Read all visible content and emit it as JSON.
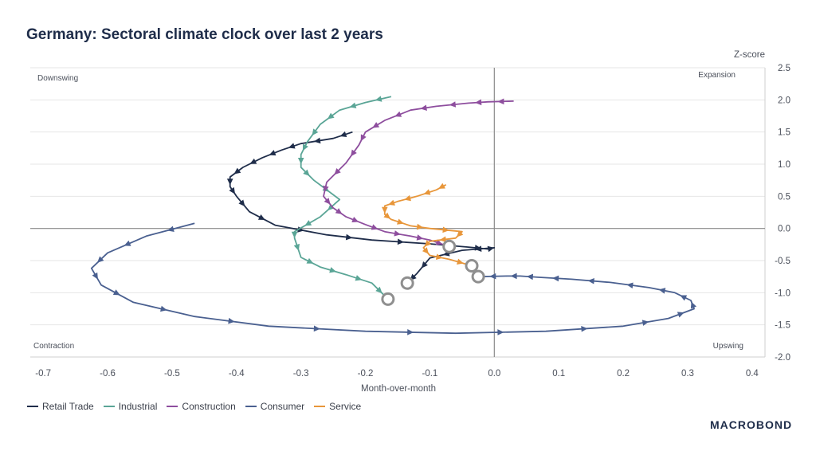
{
  "title": "Germany: Sectoral climate clock over last 2 years",
  "logo": "MACROBOND",
  "chart_data": {
    "type": "line",
    "xlabel": "Month-over-month",
    "ylabel": "Z-score",
    "xlim": [
      -0.72,
      0.42
    ],
    "ylim": [
      -2.0,
      2.5
    ],
    "x_ticks": [
      "-0.7",
      "-0.6",
      "-0.5",
      "-0.4",
      "-0.3",
      "-0.2",
      "-0.1",
      "0.0",
      "0.1",
      "0.2",
      "0.3",
      "0.4"
    ],
    "y_ticks": [
      "2.5",
      "2.0",
      "1.5",
      "1.0",
      "0.5",
      "0.0",
      "-0.5",
      "-1.0",
      "-1.5",
      "-2.0"
    ],
    "quadrants": {
      "top_left": "Downswing",
      "top_right": "Expansion",
      "bottom_left": "Contraction",
      "bottom_right": "Upswing"
    },
    "series": [
      {
        "name": "Retail Trade",
        "color": "#1f2d4a",
        "points": [
          [
            -0.22,
            1.5
          ],
          [
            -0.25,
            1.4
          ],
          [
            -0.3,
            1.32
          ],
          [
            -0.33,
            1.22
          ],
          [
            -0.36,
            1.1
          ],
          [
            -0.39,
            0.95
          ],
          [
            -0.41,
            0.8
          ],
          [
            -0.41,
            0.65
          ],
          [
            -0.4,
            0.5
          ],
          [
            -0.38,
            0.26
          ],
          [
            -0.34,
            0.05
          ],
          [
            -0.26,
            -0.1
          ],
          [
            -0.19,
            -0.18
          ],
          [
            -0.1,
            -0.24
          ],
          [
            -0.04,
            -0.29
          ],
          [
            -0.01,
            -0.32
          ],
          [
            0.0,
            -0.3
          ],
          [
            -0.05,
            -0.34
          ],
          [
            -0.1,
            -0.46
          ],
          [
            -0.12,
            -0.7
          ],
          [
            -0.135,
            -0.85
          ]
        ]
      },
      {
        "name": "Industrial",
        "color": "#5aa596",
        "points": [
          [
            -0.16,
            2.05
          ],
          [
            -0.2,
            1.96
          ],
          [
            -0.24,
            1.84
          ],
          [
            -0.27,
            1.62
          ],
          [
            -0.29,
            1.35
          ],
          [
            -0.3,
            1.15
          ],
          [
            -0.3,
            0.95
          ],
          [
            -0.28,
            0.75
          ],
          [
            -0.24,
            0.45
          ],
          [
            -0.27,
            0.18
          ],
          [
            -0.31,
            -0.05
          ],
          [
            -0.31,
            -0.15
          ],
          [
            -0.3,
            -0.45
          ],
          [
            -0.27,
            -0.6
          ],
          [
            -0.23,
            -0.72
          ],
          [
            -0.19,
            -0.85
          ],
          [
            -0.165,
            -1.1
          ]
        ]
      },
      {
        "name": "Construction",
        "color": "#8e4e9e",
        "points": [
          [
            0.03,
            1.98
          ],
          [
            -0.01,
            1.97
          ],
          [
            -0.04,
            1.95
          ],
          [
            -0.09,
            1.9
          ],
          [
            -0.13,
            1.84
          ],
          [
            -0.17,
            1.68
          ],
          [
            -0.2,
            1.5
          ],
          [
            -0.21,
            1.3
          ],
          [
            -0.23,
            1.02
          ],
          [
            -0.26,
            0.72
          ],
          [
            -0.265,
            0.5
          ],
          [
            -0.25,
            0.32
          ],
          [
            -0.23,
            0.18
          ],
          [
            -0.2,
            0.06
          ],
          [
            -0.17,
            -0.05
          ],
          [
            -0.13,
            -0.12
          ],
          [
            -0.1,
            -0.18
          ],
          [
            -0.07,
            -0.28
          ]
        ]
      },
      {
        "name": "Consumer",
        "color": "#4a6090",
        "points": [
          [
            -0.465,
            0.08
          ],
          [
            -0.54,
            -0.12
          ],
          [
            -0.6,
            -0.38
          ],
          [
            -0.625,
            -0.62
          ],
          [
            -0.61,
            -0.88
          ],
          [
            -0.56,
            -1.15
          ],
          [
            -0.465,
            -1.37
          ],
          [
            -0.35,
            -1.52
          ],
          [
            -0.2,
            -1.6
          ],
          [
            -0.06,
            -1.63
          ],
          [
            0.08,
            -1.6
          ],
          [
            0.2,
            -1.52
          ],
          [
            0.27,
            -1.4
          ],
          [
            0.31,
            -1.25
          ],
          [
            0.305,
            -1.12
          ],
          [
            0.28,
            -1.0
          ],
          [
            0.24,
            -0.92
          ],
          [
            0.18,
            -0.84
          ],
          [
            0.12,
            -0.79
          ],
          [
            0.07,
            -0.76
          ],
          [
            0.04,
            -0.74
          ],
          [
            0.02,
            -0.74
          ],
          [
            -0.025,
            -0.75
          ]
        ]
      },
      {
        "name": "Service",
        "color": "#e8963a",
        "points": [
          [
            -0.075,
            0.68
          ],
          [
            -0.09,
            0.6
          ],
          [
            -0.12,
            0.5
          ],
          [
            -0.15,
            0.42
          ],
          [
            -0.17,
            0.35
          ],
          [
            -0.17,
            0.22
          ],
          [
            -0.16,
            0.14
          ],
          [
            -0.13,
            0.04
          ],
          [
            -0.1,
            0.0
          ],
          [
            -0.05,
            -0.05
          ],
          [
            -0.06,
            -0.15
          ],
          [
            -0.1,
            -0.2
          ],
          [
            -0.11,
            -0.3
          ],
          [
            -0.1,
            -0.42
          ],
          [
            -0.07,
            -0.48
          ],
          [
            -0.035,
            -0.58
          ]
        ]
      }
    ],
    "end_markers": true
  }
}
